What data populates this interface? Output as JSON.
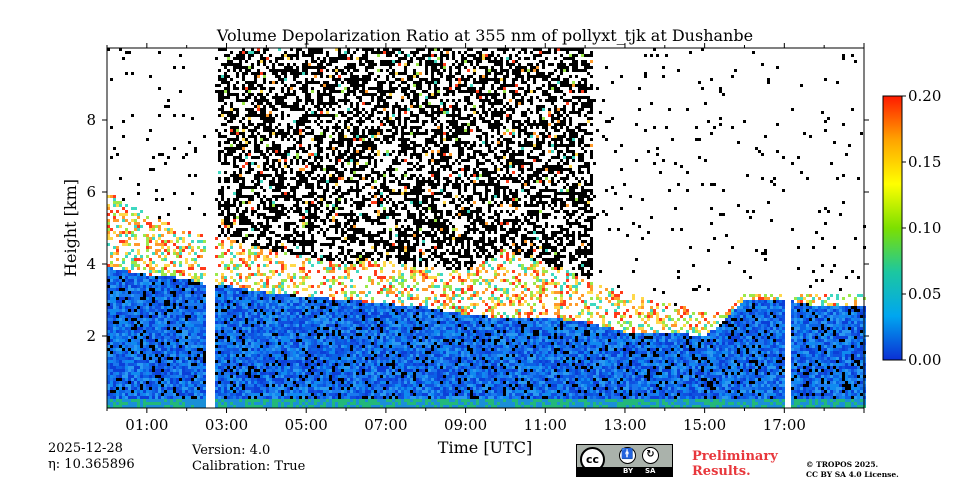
{
  "chart_data": {
    "type": "heatmap",
    "title": "Volume Depolarization Ratio at 355 nm of pollyxt_tjk at Dushanbe",
    "xlabel": "Time [UTC]",
    "ylabel": "Height [km]",
    "x_range_hours": [
      0.0,
      19.0
    ],
    "ylim": [
      0.0,
      10.0
    ],
    "x_ticks": [
      "01:00",
      "03:00",
      "05:00",
      "07:00",
      "09:00",
      "11:00",
      "13:00",
      "15:00",
      "17:00"
    ],
    "x_tick_hours": [
      1,
      3,
      5,
      7,
      9,
      11,
      13,
      15,
      17
    ],
    "y_ticks": [
      "2",
      "4",
      "6",
      "8"
    ],
    "y_tick_values": [
      2,
      4,
      6,
      8
    ],
    "colorbar": {
      "range": [
        0.0,
        0.2
      ],
      "ticks": [
        "0.00",
        "0.05",
        "0.10",
        "0.15",
        "0.20"
      ],
      "tick_values": [
        0.0,
        0.05,
        0.1,
        0.15,
        0.2
      ],
      "colors": [
        "#0b2fd4",
        "#00a6f0",
        "#1cc7a0",
        "#7ce000",
        "#ffff00",
        "#ffa400",
        "#ff1a00"
      ]
    },
    "missing_data_hours": [
      [
        2.52,
        2.7
      ],
      [
        17.0,
        17.17
      ]
    ],
    "boundary_layer_top_km": [
      [
        0.0,
        3.9
      ],
      [
        1.0,
        3.7
      ],
      [
        2.0,
        3.6
      ],
      [
        2.6,
        3.4
      ],
      [
        3.0,
        3.4
      ],
      [
        4.0,
        3.2
      ],
      [
        5.0,
        3.1
      ],
      [
        6.0,
        3.0
      ],
      [
        7.0,
        2.9
      ],
      [
        8.0,
        2.8
      ],
      [
        9.0,
        2.6
      ],
      [
        10.0,
        2.5
      ],
      [
        11.0,
        2.5
      ],
      [
        12.0,
        2.4
      ],
      [
        13.0,
        2.1
      ],
      [
        14.0,
        2.1
      ],
      [
        15.0,
        2.0
      ],
      [
        15.5,
        2.4
      ],
      [
        16.0,
        3.0
      ],
      [
        17.0,
        3.0
      ],
      [
        18.0,
        2.8
      ],
      [
        19.0,
        2.8
      ]
    ],
    "aerosol_layer_top_km": [
      [
        0.0,
        6.0
      ],
      [
        1.0,
        5.4
      ],
      [
        2.0,
        4.9
      ],
      [
        3.0,
        4.7
      ],
      [
        4.0,
        4.4
      ],
      [
        5.0,
        4.2
      ],
      [
        6.0,
        4.0
      ],
      [
        7.0,
        4.1
      ],
      [
        8.0,
        3.9
      ],
      [
        9.0,
        3.8
      ],
      [
        10.0,
        4.4
      ],
      [
        11.0,
        4.0
      ],
      [
        12.0,
        3.6
      ],
      [
        13.0,
        3.2
      ],
      [
        14.0,
        2.9
      ],
      [
        15.0,
        2.7
      ],
      [
        15.5,
        2.6
      ],
      [
        16.0,
        3.2
      ],
      [
        19.0,
        3.2
      ]
    ],
    "noisy_high_altitude_hours": [
      [
        2.75,
        12.2
      ]
    ],
    "version": "Version: 4.0",
    "calibration": "Calibration: True",
    "date": "2025-12-28",
    "eta_label": "η: 10.365896"
  },
  "badges": {
    "cc": "cc",
    "by": "BY",
    "sa": "SA",
    "preliminary_line1": "Preliminary",
    "preliminary_line2": "Results.",
    "license_line1": "© TROPOS 2025.",
    "license_line2": "CC BY SA 4.0 License."
  }
}
